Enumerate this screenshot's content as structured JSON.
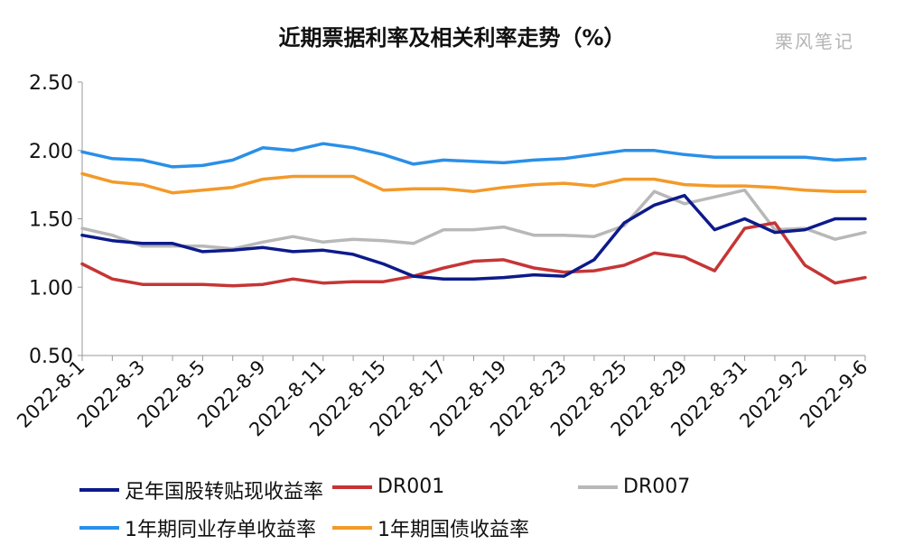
{
  "title": "近期票据利率及相关利率走势（%）",
  "watermark": "栗风笔记",
  "chart_data": {
    "type": "line",
    "title": "近期票据利率及相关利率走势（%）",
    "ylim": [
      0.5,
      2.5
    ],
    "yticks": [
      "0.50",
      "1.00",
      "1.50",
      "2.00",
      "2.50"
    ],
    "grid": false,
    "legend_position": "bottom",
    "x_tick_labels": [
      "2022-8-1",
      "2022-8-3",
      "2022-8-5",
      "2022-8-9",
      "2022-8-11",
      "2022-8-15",
      "2022-8-17",
      "2022-8-19",
      "2022-8-23",
      "2022-8-25",
      "2022-8-29",
      "2022-8-31",
      "2022-9-2",
      "2022-9-6"
    ],
    "series": [
      {
        "name": "足年国股转贴现收益率",
        "color": "#0d1a8a",
        "values": [
          1.38,
          1.34,
          1.32,
          1.32,
          1.26,
          1.27,
          1.29,
          1.26,
          1.27,
          1.24,
          1.17,
          1.08,
          1.06,
          1.06,
          1.07,
          1.09,
          1.08,
          1.2,
          1.47,
          1.6,
          1.67,
          1.42,
          1.5,
          1.4,
          1.42,
          1.5,
          1.5
        ]
      },
      {
        "name": "DR001",
        "color": "#c63535",
        "values": [
          1.17,
          1.06,
          1.02,
          1.02,
          1.02,
          1.01,
          1.02,
          1.06,
          1.03,
          1.04,
          1.04,
          1.08,
          1.14,
          1.19,
          1.2,
          1.14,
          1.11,
          1.12,
          1.16,
          1.25,
          1.22,
          1.12,
          1.43,
          1.47,
          1.16,
          1.03,
          1.07
        ]
      },
      {
        "name": "DR007",
        "color": "#b8b8b8",
        "values": [
          1.43,
          1.38,
          1.3,
          1.3,
          1.3,
          1.28,
          1.33,
          1.37,
          1.33,
          1.35,
          1.34,
          1.32,
          1.42,
          1.42,
          1.44,
          1.38,
          1.38,
          1.37,
          1.45,
          1.7,
          1.61,
          1.66,
          1.71,
          1.42,
          1.43,
          1.35,
          1.4
        ]
      },
      {
        "name": "1年期同业存单收益率",
        "color": "#2a8fe8",
        "values": [
          1.99,
          1.94,
          1.93,
          1.88,
          1.89,
          1.93,
          2.02,
          2.0,
          2.05,
          2.02,
          1.97,
          1.9,
          1.93,
          1.92,
          1.91,
          1.93,
          1.94,
          1.97,
          2.0,
          2.0,
          1.97,
          1.95,
          1.95,
          1.95,
          1.95,
          1.93,
          1.94
        ]
      },
      {
        "name": "1年期国债收益率",
        "color": "#f39a2a",
        "values": [
          1.83,
          1.77,
          1.75,
          1.69,
          1.71,
          1.73,
          1.79,
          1.81,
          1.81,
          1.81,
          1.71,
          1.72,
          1.72,
          1.7,
          1.73,
          1.75,
          1.76,
          1.74,
          1.79,
          1.79,
          1.75,
          1.74,
          1.74,
          1.73,
          1.71,
          1.7,
          1.7
        ]
      }
    ]
  }
}
